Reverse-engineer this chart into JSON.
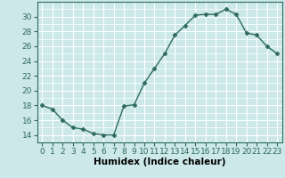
{
  "x": [
    0,
    1,
    2,
    3,
    4,
    5,
    6,
    7,
    8,
    9,
    10,
    11,
    12,
    13,
    14,
    15,
    16,
    17,
    18,
    19,
    20,
    21,
    22,
    23
  ],
  "y": [
    18,
    17.5,
    16,
    15,
    14.8,
    14.2,
    14,
    14,
    17.9,
    18.1,
    21,
    23,
    25,
    27.5,
    28.8,
    30.2,
    30.3,
    30.3,
    31,
    30.3,
    27.8,
    27.5,
    26,
    25
  ],
  "line_color": "#2e6b5e",
  "marker": "D",
  "markersize": 2.5,
  "linewidth": 1.0,
  "xlabel": "Humidex (Indice chaleur)",
  "xlim": [
    -0.5,
    23.5
  ],
  "ylim": [
    13,
    32
  ],
  "yticks": [
    14,
    16,
    18,
    20,
    22,
    24,
    26,
    28,
    30
  ],
  "xticks": [
    0,
    1,
    2,
    3,
    4,
    5,
    6,
    7,
    8,
    9,
    10,
    11,
    12,
    13,
    14,
    15,
    16,
    17,
    18,
    19,
    20,
    21,
    22,
    23
  ],
  "bg_color": "#cce8e8",
  "grid_color": "#ffffff",
  "tick_fontsize": 6.5,
  "xlabel_fontsize": 7.5,
  "spine_color": "#2e6b5e"
}
